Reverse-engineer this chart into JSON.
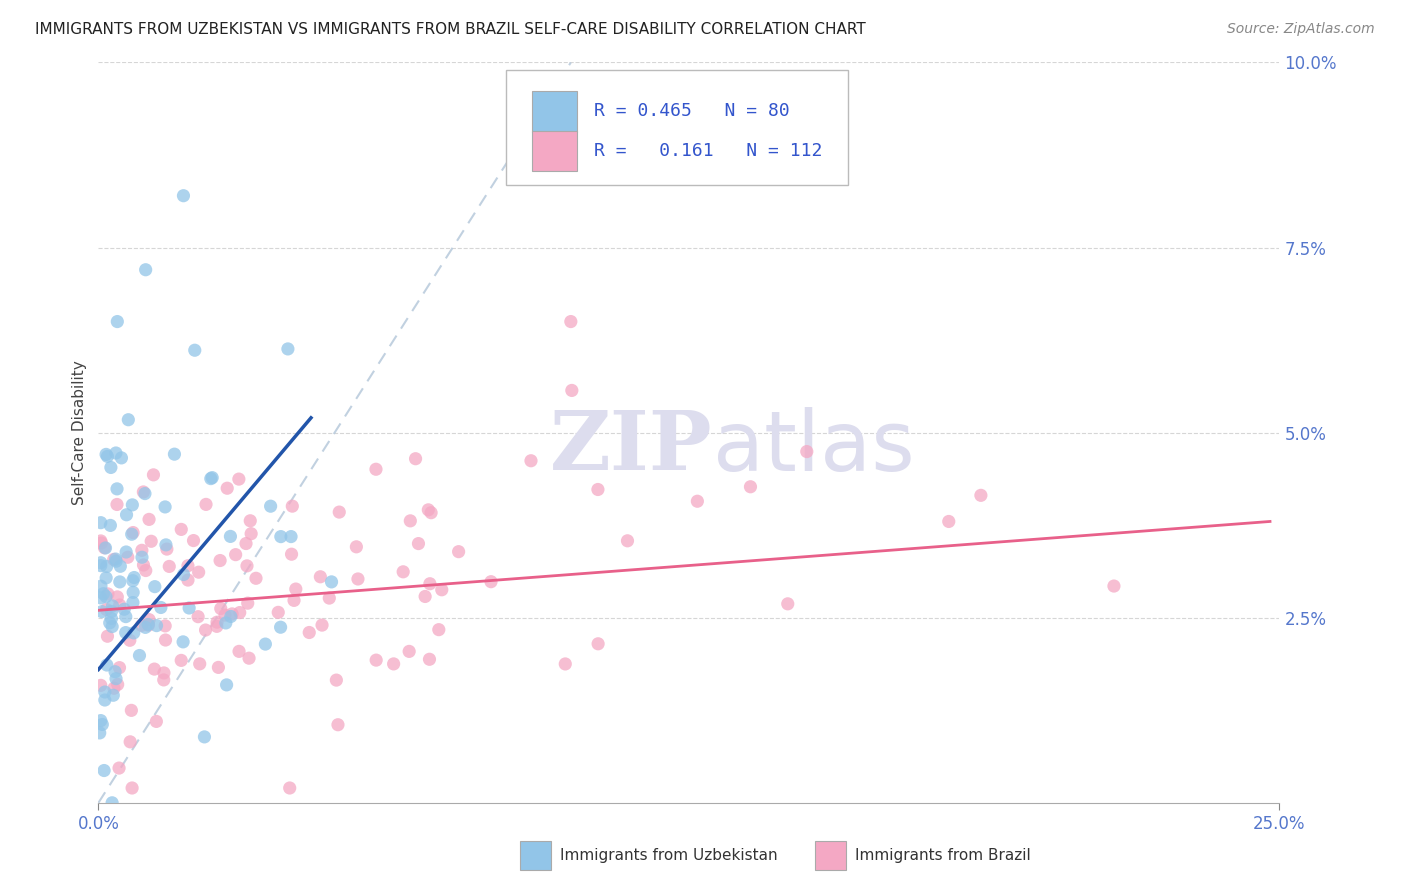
{
  "title": "IMMIGRANTS FROM UZBEKISTAN VS IMMIGRANTS FROM BRAZIL SELF-CARE DISABILITY CORRELATION CHART",
  "source": "Source: ZipAtlas.com",
  "ylabel_label": "Self-Care Disability",
  "legend_uzbekistan": {
    "R": 0.465,
    "N": 80
  },
  "legend_brazil": {
    "R": 0.161,
    "N": 112
  },
  "uzbekistan_color": "#92C5E8",
  "brazil_color": "#F4A8C4",
  "uzbekistan_line_color": "#2255AA",
  "brazil_line_color": "#E8608A",
  "diag_line_color": "#BBCCDD",
  "background_color": "#FFFFFF",
  "tick_color_y": "#5577CC",
  "tick_color_x": "#5577CC",
  "watermark_color": "#DDDDEE",
  "xlim": [
    0.0,
    0.25
  ],
  "ylim": [
    0.0,
    0.1
  ],
  "x_ticks": [
    0.0,
    0.25
  ],
  "y_ticks": [
    0.025,
    0.05,
    0.075,
    0.1
  ]
}
